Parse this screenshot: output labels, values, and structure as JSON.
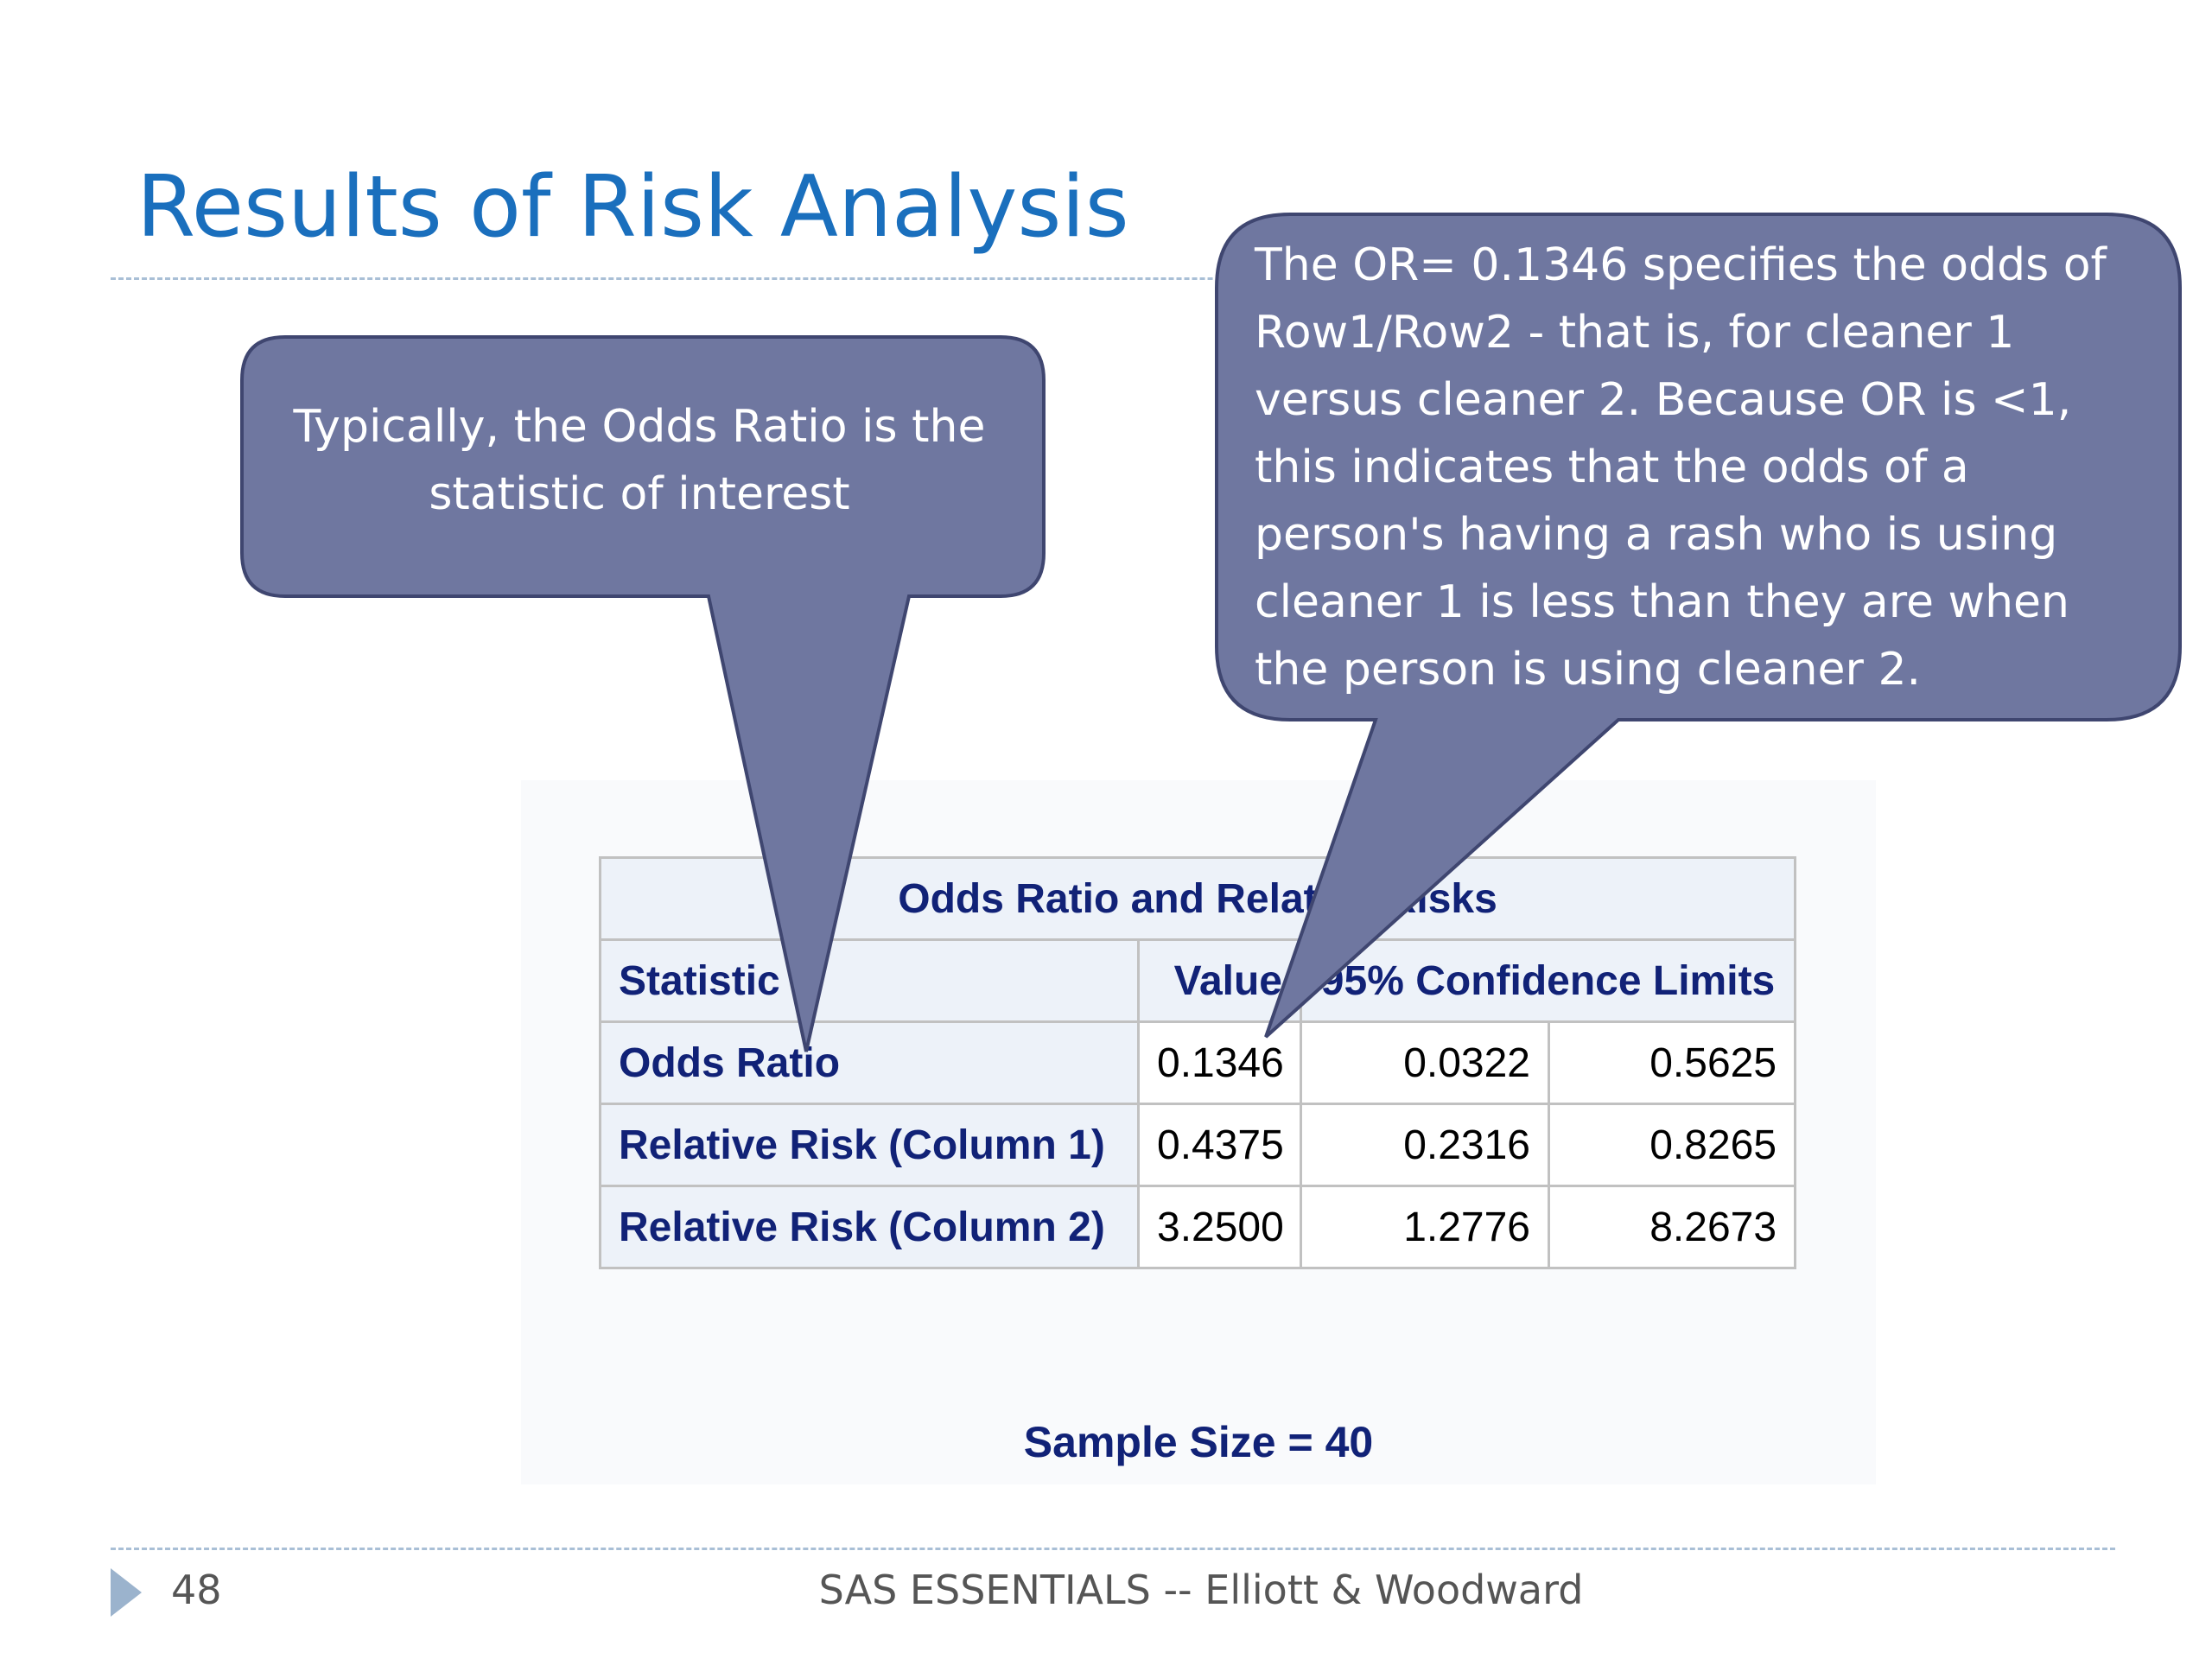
{
  "slide": {
    "title": "Results of Risk Analysis",
    "page_number": "48",
    "footer": "SAS ESSENTIALS -- Elliott & Woodward"
  },
  "table": {
    "caption": "Odds Ratio and Relative Risks",
    "headers": {
      "statistic": "Statistic",
      "value": "Value",
      "confidence": "95% Confidence Limits"
    },
    "rows": [
      {
        "statistic": "Odds Ratio",
        "value": "0.1346",
        "lower": "0.0322",
        "upper": "0.5625"
      },
      {
        "statistic": "Relative Risk (Column 1)",
        "value": "0.4375",
        "lower": "0.2316",
        "upper": "0.8265"
      },
      {
        "statistic": "Relative Risk (Column 2)",
        "value": "3.2500",
        "lower": "1.2776",
        "upper": "8.2673"
      }
    ],
    "sample_size": "Sample Size = 40"
  },
  "callouts": {
    "left": "Typically, the Odds Ratio is the statistic of interest",
    "right": "The OR= 0.1346 specifies the odds of Row1/Row2 - that is, for cleaner 1 versus cleaner 2. Because OR is <1, this indicates that the odds of a person's having a rash who is using cleaner 1 is less than they are when the person is using cleaner 2."
  },
  "colors": {
    "title": "#1a6fbd",
    "callout_fill": "#6f77a0",
    "callout_stroke": "#3f4670",
    "table_header_bg": "#edf2f9",
    "table_header_text": "#112277"
  }
}
